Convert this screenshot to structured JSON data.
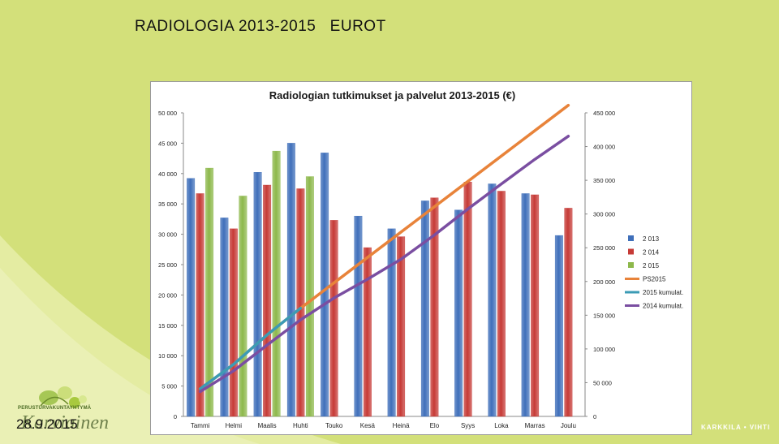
{
  "slide": {
    "title": "RADIOLOGIA 2013-2015   EUROT",
    "date": "28.9.2015",
    "logo_small_text": "PERUSTURVAKUNTAYHTYMÄ",
    "logo_big_text": "Karviainen",
    "footer_brand": "KARKKILA • VIHTI",
    "colors": {
      "background": "#d3e07a",
      "wave": "#e6eda9"
    }
  },
  "chart_data": {
    "type": "bar",
    "title": "Radiologian tutkimukset ja palvelut 2013-2015 (€)",
    "categories": [
      "Tammi",
      "Helmi",
      "Maalis",
      "Huhti",
      "Touko",
      "Kesä",
      "Heinä",
      "Elo",
      "Syys",
      "Loka",
      "Marras",
      "Joulu"
    ],
    "y_left": {
      "min": 0,
      "max": 50000,
      "step": 5000,
      "ticks": [
        "0",
        "5 000",
        "10 000",
        "15 000",
        "20 000",
        "25 000",
        "30 000",
        "35 000",
        "40 000",
        "45 000",
        "50 000"
      ]
    },
    "y_right": {
      "min": 0,
      "max": 450000,
      "step": 50000,
      "ticks": [
        "0",
        "50 000",
        "100 000",
        "150 000",
        "200 000",
        "250 000",
        "300 000",
        "350 000",
        "400 000",
        "450 000"
      ]
    },
    "bar_series": [
      {
        "name": "2 013",
        "color": "#3f6fba",
        "values": [
          39200,
          32700,
          40200,
          45000,
          43400,
          33000,
          30900,
          35500,
          34000,
          38300,
          36700,
          29800
        ]
      },
      {
        "name": "2 014",
        "color": "#c63a36",
        "values": [
          36700,
          30900,
          38100,
          37500,
          32300,
          27800,
          29600,
          36000,
          38600,
          37100,
          36500,
          34300
        ]
      },
      {
        "name": "2 015",
        "color": "#8db84b",
        "values": [
          40900,
          36300,
          43700,
          39500,
          null,
          null,
          null,
          null,
          null,
          null,
          null,
          null
        ]
      }
    ],
    "line_series": [
      {
        "name": "PS2015",
        "axis": "right",
        "color": "#e8833a",
        "values": [
          40900,
          77200,
          120900,
          160400,
          198000,
          235600,
          273200,
          310800,
          348400,
          386000,
          423600,
          461200
        ]
      },
      {
        "name": "2015 kumulat.",
        "axis": "right",
        "color": "#3b9bb5",
        "values": [
          40900,
          77200,
          120900,
          160400,
          null,
          null,
          null,
          null,
          null,
          null,
          null,
          null
        ]
      },
      {
        "name": "2014 kumulat.",
        "axis": "right",
        "color": "#7a4ea1",
        "values": [
          36700,
          67600,
          105700,
          143200,
          175500,
          203300,
          232900,
          268900,
          307500,
          344600,
          381100,
          415400
        ]
      }
    ],
    "legend": "right",
    "grid": false
  }
}
